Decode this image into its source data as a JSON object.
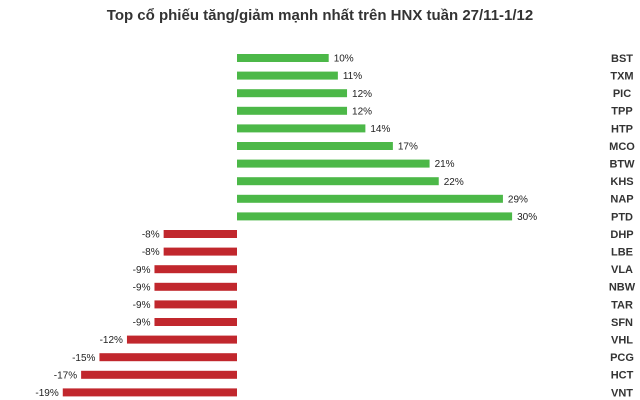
{
  "chart_data": {
    "type": "bar",
    "orientation": "horizontal",
    "title": "Top cổ phiếu tăng/giảm mạnh nhất trên HNX tuần 27/11-1/12",
    "categories": [
      "BST",
      "TXM",
      "PIC",
      "TPP",
      "HTP",
      "MCO",
      "BTW",
      "KHS",
      "NAP",
      "PTD",
      "DHP",
      "LBE",
      "VLA",
      "NBW",
      "TAR",
      "SFN",
      "VHL",
      "PCG",
      "HCT",
      "VNT"
    ],
    "values": [
      10,
      11,
      12,
      12,
      14,
      17,
      21,
      22,
      29,
      30,
      -8,
      -8,
      -9,
      -9,
      -9,
      -9,
      -12,
      -15,
      -17,
      -19
    ],
    "value_labels": [
      "10%",
      "11%",
      "12%",
      "12%",
      "14%",
      "17%",
      "21%",
      "22%",
      "29%",
      "30%",
      "-8%",
      "-8%",
      "-9%",
      "-9%",
      "-9%",
      "-9%",
      "-12%",
      "-15%",
      "-17%",
      "-19%"
    ],
    "color_positive": "#4cb848",
    "color_negative": "#c1272d"
  }
}
